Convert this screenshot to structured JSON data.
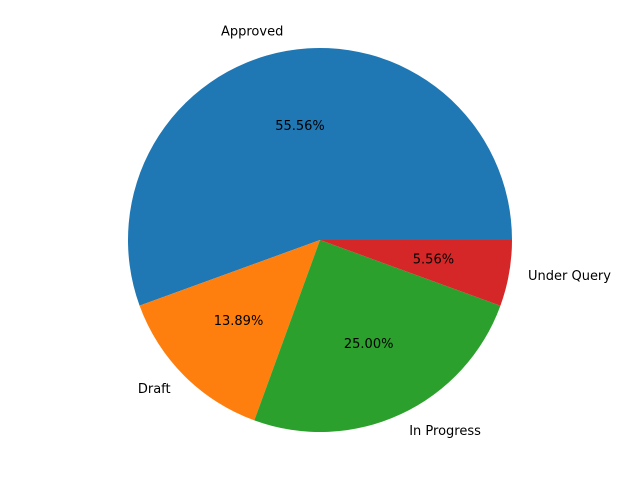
{
  "chart_data": {
    "type": "pie",
    "title": "",
    "categories": [
      "Approved",
      "Draft",
      "In Progress",
      "Under Query"
    ],
    "values": [
      55.56,
      13.89,
      25.0,
      5.56
    ],
    "value_labels": [
      "55.56%",
      "13.89%",
      "25.00%",
      "5.56%"
    ],
    "colors": [
      "#1f77b4",
      "#ff7f0e",
      "#2ca02c",
      "#d62728"
    ],
    "start_angle_deg": 0,
    "direction": "counterclockwise",
    "legend": "none"
  }
}
